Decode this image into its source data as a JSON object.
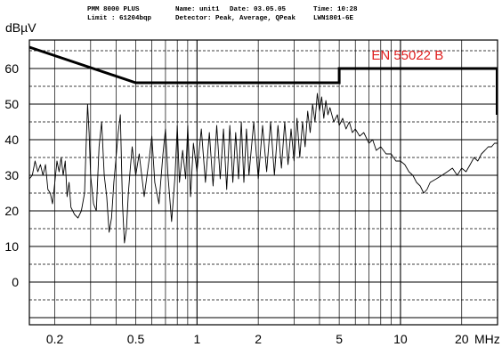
{
  "header": {
    "instrument": "PMM 8000 PLUS",
    "limit": "Limit : 61204bqp",
    "name": "Name: unit1",
    "date": "Date: 03.05.05",
    "detector": "Detector: Peak, Average, QPeak",
    "time": "Time: 10:28",
    "device": "LWN1801-6E"
  },
  "colors": {
    "limit_label": "#e02020",
    "trace": "#000000",
    "grid": "#000000"
  },
  "chart_data": {
    "type": "line",
    "ylabel": "dBµV",
    "xunit": "MHz",
    "x_scale": "log",
    "xlim": [
      0.15,
      30
    ],
    "ylim": [
      -12,
      68
    ],
    "y_ticks": [
      0,
      10,
      20,
      30,
      40,
      50,
      60
    ],
    "x_ticks": [
      {
        "value": 0.2,
        "label": "0.2"
      },
      {
        "value": 0.5,
        "label": "0.5"
      },
      {
        "value": 1,
        "label": "1"
      },
      {
        "value": 2,
        "label": "2"
      },
      {
        "value": 5,
        "label": "5"
      },
      {
        "value": 10,
        "label": "10"
      },
      {
        "value": 20,
        "label": "20"
      }
    ],
    "limit": {
      "label": "EN 55022 B",
      "points": [
        [
          0.15,
          66
        ],
        [
          0.5,
          56
        ],
        [
          5,
          56
        ],
        [
          5,
          60
        ],
        [
          30,
          60
        ]
      ]
    },
    "series": [
      {
        "points": [
          [
            0.15,
            29
          ],
          [
            0.155,
            30
          ],
          [
            0.16,
            34
          ],
          [
            0.165,
            31
          ],
          [
            0.17,
            33
          ],
          [
            0.175,
            30
          ],
          [
            0.18,
            33
          ],
          [
            0.185,
            26
          ],
          [
            0.19,
            25
          ],
          [
            0.195,
            22
          ],
          [
            0.2,
            28
          ],
          [
            0.205,
            34
          ],
          [
            0.21,
            31
          ],
          [
            0.215,
            35
          ],
          [
            0.22,
            30
          ],
          [
            0.225,
            34
          ],
          [
            0.23,
            24
          ],
          [
            0.235,
            28
          ],
          [
            0.24,
            21
          ],
          [
            0.25,
            19
          ],
          [
            0.26,
            18
          ],
          [
            0.27,
            20
          ],
          [
            0.28,
            25
          ],
          [
            0.285,
            38
          ],
          [
            0.29,
            50
          ],
          [
            0.295,
            42
          ],
          [
            0.3,
            30
          ],
          [
            0.31,
            22
          ],
          [
            0.32,
            20
          ],
          [
            0.33,
            38
          ],
          [
            0.34,
            45
          ],
          [
            0.35,
            30
          ],
          [
            0.36,
            24
          ],
          [
            0.37,
            14
          ],
          [
            0.38,
            18
          ],
          [
            0.39,
            28
          ],
          [
            0.4,
            35
          ],
          [
            0.41,
            42
          ],
          [
            0.42,
            47
          ],
          [
            0.43,
            22
          ],
          [
            0.44,
            11
          ],
          [
            0.45,
            15
          ],
          [
            0.46,
            25
          ],
          [
            0.47,
            32
          ],
          [
            0.48,
            38
          ],
          [
            0.5,
            30
          ],
          [
            0.52,
            36
          ],
          [
            0.55,
            24
          ],
          [
            0.58,
            34
          ],
          [
            0.6,
            41
          ],
          [
            0.62,
            28
          ],
          [
            0.65,
            22
          ],
          [
            0.68,
            36
          ],
          [
            0.7,
            43
          ],
          [
            0.72,
            30
          ],
          [
            0.75,
            17
          ],
          [
            0.78,
            30
          ],
          [
            0.8,
            44
          ],
          [
            0.82,
            28
          ],
          [
            0.85,
            37
          ],
          [
            0.88,
            29
          ],
          [
            0.9,
            44
          ],
          [
            0.93,
            24
          ],
          [
            0.96,
            39
          ],
          [
            1.0,
            31
          ],
          [
            1.05,
            43
          ],
          [
            1.1,
            28
          ],
          [
            1.15,
            42
          ],
          [
            1.2,
            27
          ],
          [
            1.25,
            44
          ],
          [
            1.3,
            29
          ],
          [
            1.35,
            43
          ],
          [
            1.4,
            26
          ],
          [
            1.45,
            44
          ],
          [
            1.5,
            28
          ],
          [
            1.55,
            42
          ],
          [
            1.6,
            29
          ],
          [
            1.65,
            45
          ],
          [
            1.7,
            28
          ],
          [
            1.75,
            43
          ],
          [
            1.8,
            30
          ],
          [
            1.9,
            45
          ],
          [
            2.0,
            29
          ],
          [
            2.1,
            44
          ],
          [
            2.2,
            31
          ],
          [
            2.3,
            45
          ],
          [
            2.4,
            30
          ],
          [
            2.5,
            44
          ],
          [
            2.6,
            32
          ],
          [
            2.7,
            45
          ],
          [
            2.8,
            33
          ],
          [
            2.9,
            43
          ],
          [
            3.0,
            34
          ],
          [
            3.1,
            46
          ],
          [
            3.2,
            35
          ],
          [
            3.3,
            45
          ],
          [
            3.4,
            38
          ],
          [
            3.5,
            48
          ],
          [
            3.6,
            42
          ],
          [
            3.7,
            50
          ],
          [
            3.8,
            45
          ],
          [
            3.9,
            53
          ],
          [
            4.0,
            48
          ],
          [
            4.1,
            52
          ],
          [
            4.2,
            46
          ],
          [
            4.3,
            51
          ],
          [
            4.4,
            47
          ],
          [
            4.5,
            49
          ],
          [
            4.7,
            45
          ],
          [
            4.9,
            47
          ],
          [
            5.0,
            44
          ],
          [
            5.2,
            46
          ],
          [
            5.4,
            43
          ],
          [
            5.6,
            45
          ],
          [
            5.8,
            42
          ],
          [
            6.0,
            43
          ],
          [
            6.3,
            41
          ],
          [
            6.6,
            42
          ],
          [
            7.0,
            39
          ],
          [
            7.3,
            40
          ],
          [
            7.6,
            37
          ],
          [
            8.0,
            38
          ],
          [
            8.5,
            36
          ],
          [
            9.0,
            36
          ],
          [
            9.5,
            34
          ],
          [
            10.0,
            34
          ],
          [
            10.5,
            33
          ],
          [
            11.0,
            31
          ],
          [
            11.5,
            30
          ],
          [
            12.0,
            28
          ],
          [
            12.5,
            27
          ],
          [
            13.0,
            25
          ],
          [
            13.5,
            26
          ],
          [
            14.0,
            28
          ],
          [
            15.0,
            29
          ],
          [
            16.0,
            30
          ],
          [
            17.0,
            31
          ],
          [
            18.0,
            32
          ],
          [
            19.0,
            30
          ],
          [
            20.0,
            32
          ],
          [
            21.0,
            31
          ],
          [
            22.0,
            33
          ],
          [
            23.0,
            35
          ],
          [
            24.0,
            34
          ],
          [
            25.0,
            36
          ],
          [
            26.0,
            37
          ],
          [
            27.0,
            38
          ],
          [
            28.0,
            38
          ],
          [
            29.0,
            39
          ],
          [
            30.0,
            39
          ]
        ]
      }
    ]
  }
}
